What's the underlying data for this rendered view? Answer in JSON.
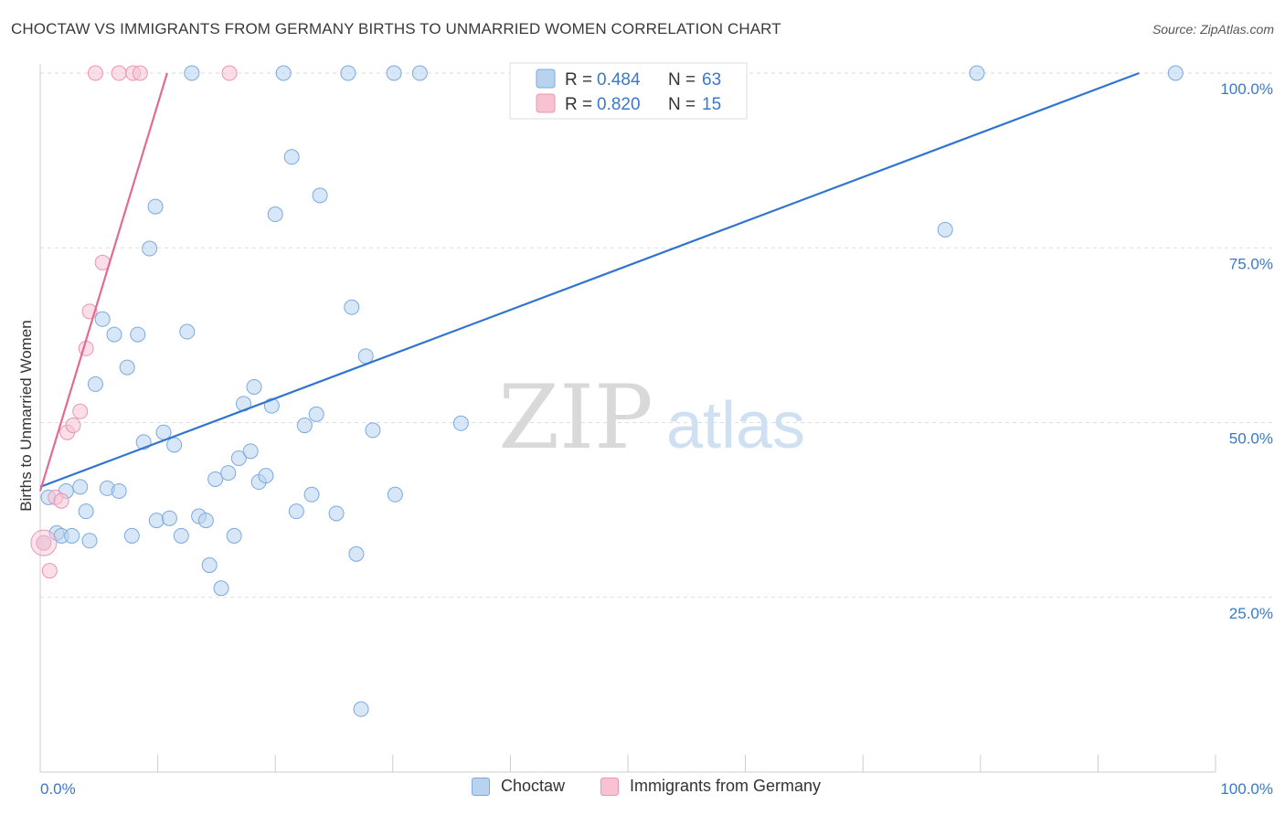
{
  "title": "CHOCTAW VS IMMIGRANTS FROM GERMANY BIRTHS TO UNMARRIED WOMEN CORRELATION CHART",
  "source": "Source: ZipAtlas.com",
  "watermark": {
    "zip": "ZIP",
    "atlas": "atlas"
  },
  "colors": {
    "blue_fill": "#b8d3f0",
    "blue_stroke": "#7aaae0",
    "blue_line": "#2f74d0",
    "pink_fill": "#f7c3d3",
    "pink_stroke": "#ec94b1",
    "pink_line": "#e36a95",
    "axis_label": "#3a78c9",
    "grid": "#dddddd"
  },
  "chart_data": {
    "type": "scatter",
    "ylabel": "Births to Unmarried Women",
    "xlim": [
      0,
      100
    ],
    "ylim": [
      0,
      100
    ],
    "x_tick_labels": {
      "left": "0.0%",
      "right": "100.0%"
    },
    "y_ticks": [
      {
        "value": 100,
        "label": "100.0%"
      },
      {
        "value": 75,
        "label": "75.0%"
      },
      {
        "value": 50,
        "label": "50.0%"
      },
      {
        "value": 25,
        "label": "25.0%"
      }
    ],
    "legend": [
      {
        "name": "Choctaw",
        "r_label": "R =",
        "r": "0.484",
        "n_label": "N =",
        "n": "63"
      },
      {
        "name": "Immigrants from Germany",
        "r_label": "R =",
        "r": "0.820",
        "n_label": "N =",
        "n": "15"
      }
    ],
    "series": [
      {
        "name": "Choctaw",
        "color": "blue",
        "trendline": {
          "x": [
            0,
            93.5
          ],
          "y": [
            40.8,
            100
          ]
        },
        "points": [
          [
            0.3,
            32.8
          ],
          [
            0.7,
            39.3
          ],
          [
            1.4,
            34.2
          ],
          [
            1.8,
            33.8
          ],
          [
            2.2,
            40.2
          ],
          [
            2.7,
            33.8
          ],
          [
            3.4,
            40.8
          ],
          [
            3.9,
            37.3
          ],
          [
            4.2,
            33.1
          ],
          [
            4.7,
            55.5
          ],
          [
            5.3,
            64.8
          ],
          [
            5.7,
            40.6
          ],
          [
            6.3,
            62.6
          ],
          [
            6.7,
            40.2
          ],
          [
            7.4,
            57.9
          ],
          [
            7.8,
            33.8
          ],
          [
            8.3,
            62.6
          ],
          [
            8.8,
            47.2
          ],
          [
            9.3,
            74.9
          ],
          [
            9.8,
            80.9
          ],
          [
            9.9,
            36.0
          ],
          [
            10.5,
            48.6
          ],
          [
            11.0,
            36.3
          ],
          [
            11.4,
            46.8
          ],
          [
            12.0,
            33.8
          ],
          [
            12.5,
            63.0
          ],
          [
            12.9,
            100.0
          ],
          [
            13.5,
            36.6
          ],
          [
            14.1,
            36.0
          ],
          [
            14.4,
            29.6
          ],
          [
            14.9,
            41.9
          ],
          [
            15.4,
            26.3
          ],
          [
            16.0,
            42.8
          ],
          [
            16.5,
            33.8
          ],
          [
            16.9,
            44.9
          ],
          [
            17.3,
            52.7
          ],
          [
            17.9,
            45.9
          ],
          [
            18.2,
            55.1
          ],
          [
            18.6,
            41.5
          ],
          [
            19.2,
            42.4
          ],
          [
            19.7,
            52.4
          ],
          [
            20.0,
            79.8
          ],
          [
            20.7,
            100.0
          ],
          [
            21.4,
            88.0
          ],
          [
            21.8,
            37.3
          ],
          [
            22.5,
            49.6
          ],
          [
            23.1,
            39.7
          ],
          [
            23.5,
            51.2
          ],
          [
            23.8,
            82.5
          ],
          [
            25.2,
            37.0
          ],
          [
            26.5,
            66.5
          ],
          [
            26.9,
            31.2
          ],
          [
            27.3,
            9.0
          ],
          [
            27.7,
            59.5
          ],
          [
            28.3,
            48.9
          ],
          [
            26.2,
            100.0
          ],
          [
            30.1,
            100.0
          ],
          [
            30.2,
            39.7
          ],
          [
            32.3,
            100.0
          ],
          [
            35.8,
            49.9
          ],
          [
            77.0,
            77.6
          ],
          [
            79.7,
            100.0
          ],
          [
            96.6,
            100.0
          ]
        ]
      },
      {
        "name": "Immigrants from Germany",
        "color": "pink",
        "trendline": {
          "x": [
            0,
            10.8
          ],
          "y": [
            40.2,
            100
          ]
        },
        "points": [
          [
            0.3,
            32.8
          ],
          [
            0.8,
            28.8
          ],
          [
            1.3,
            39.3
          ],
          [
            1.8,
            38.8
          ],
          [
            2.3,
            48.6
          ],
          [
            2.8,
            49.6
          ],
          [
            3.4,
            51.6
          ],
          [
            3.9,
            60.6
          ],
          [
            4.2,
            65.9
          ],
          [
            5.3,
            72.9
          ],
          [
            4.7,
            100.0
          ],
          [
            6.7,
            100.0
          ],
          [
            7.9,
            100.0
          ],
          [
            8.5,
            100.0
          ],
          [
            16.1,
            100.0
          ]
        ]
      }
    ]
  }
}
